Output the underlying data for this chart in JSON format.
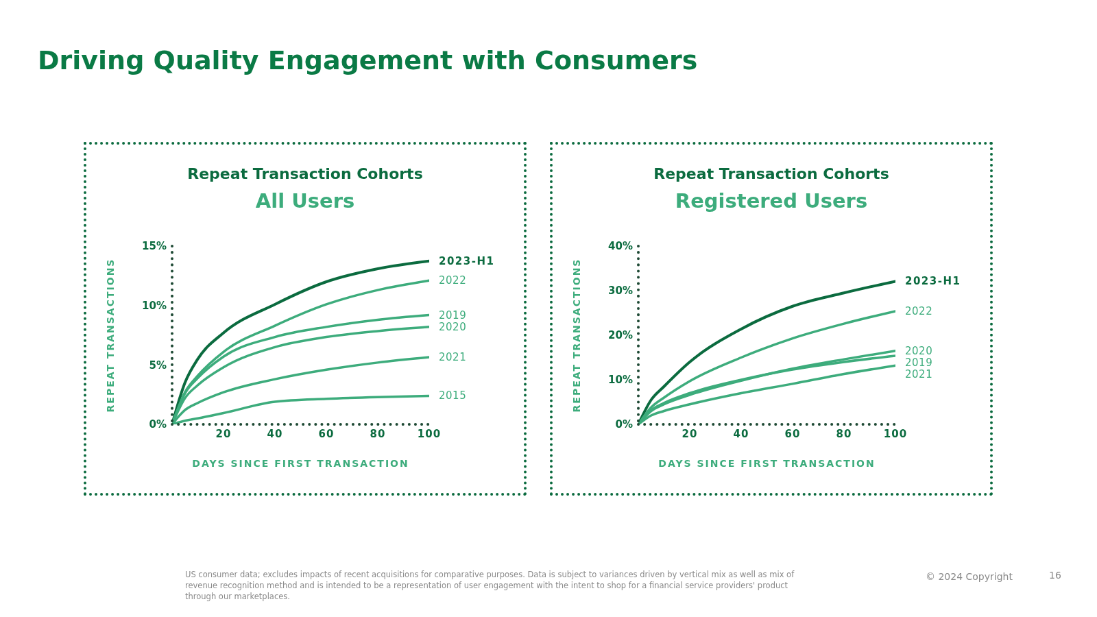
{
  "chart_data": [
    {
      "type": "line",
      "title": "Repeat Transaction Cohorts",
      "subtitle": "All Users",
      "xlabel": "DAYS SINCE FIRST TRANSACTION",
      "ylabel": "REPEAT TRANSACTIONS",
      "annotations": [
        "Driving Quality Engagement with Consumers"
      ],
      "x": [
        0,
        5,
        10,
        20,
        40,
        60,
        80,
        100
      ],
      "xlim": [
        0,
        100
      ],
      "xticks": [
        20,
        40,
        60,
        80,
        100
      ],
      "ylim": [
        0,
        15
      ],
      "yticks": [
        {
          "value": 0,
          "label": "0%"
        },
        {
          "value": 5,
          "label": "5%"
        },
        {
          "value": 10,
          "label": "10%"
        },
        {
          "value": 15,
          "label": "15%"
        }
      ],
      "marker": "none",
      "line_style": "solid",
      "series": [
        {
          "name": "2023-H1",
          "color": "#0b6b3f",
          "values": [
            0,
            3.5,
            5.5,
            7.7,
            10.1,
            12,
            13.1,
            13.75
          ]
        },
        {
          "name": "2022",
          "color": "#3dac7c",
          "values": [
            0,
            2.7,
            4.1,
            6.1,
            8.3,
            10.1,
            11.3,
            12.1
          ]
        },
        {
          "name": "2019",
          "color": "#3dac7c",
          "values": [
            0,
            2.6,
            3.9,
            5.7,
            7.35,
            8.2,
            8.8,
            9.2
          ]
        },
        {
          "name": "2020",
          "color": "#3dac7c",
          "values": [
            0,
            2.2,
            3.3,
            4.8,
            6.5,
            7.35,
            7.85,
            8.2
          ]
        },
        {
          "name": "2021",
          "color": "#3dac7c",
          "values": [
            0,
            1.2,
            1.8,
            2.7,
            3.8,
            4.6,
            5.2,
            5.65
          ]
        },
        {
          "name": "2015",
          "color": "#3dac7c",
          "values": [
            0,
            0.3,
            0.5,
            0.95,
            1.9,
            2.15,
            2.3,
            2.4
          ]
        }
      ]
    },
    {
      "type": "line",
      "title": "Repeat Transaction Cohorts",
      "subtitle": "Registered Users",
      "xlabel": "DAYS SINCE FIRST TRANSACTION",
      "ylabel": "REPEAT TRANSACTIONS",
      "annotations": [
        "US consumer data; excludes impacts of recent acquisitions for comparative purposes. Data is subject to variances driven by vertical mix as well as mix of revenue recognition method and is intended to be a representation of user engagement with the intent to shop for a financial service providers' product through our marketplaces.",
        "© 2024 Copyright",
        "16"
      ],
      "x": [
        0,
        5,
        10,
        20,
        40,
        60,
        80,
        100
      ],
      "xlim": [
        0,
        100
      ],
      "xticks": [
        20,
        40,
        60,
        80,
        100
      ],
      "ylim": [
        0,
        40
      ],
      "yticks": [
        {
          "value": 0,
          "label": "0%"
        },
        {
          "value": 10,
          "label": "10%"
        },
        {
          "value": 20,
          "label": "20%"
        },
        {
          "value": 30,
          "label": "30%"
        },
        {
          "value": 40,
          "label": "40%"
        }
      ],
      "marker": "none",
      "line_style": "solid",
      "series": [
        {
          "name": "2023-H1",
          "color": "#0b6b3f",
          "values": [
            0,
            5.5,
            8.5,
            14,
            21.4,
            26.5,
            29.5,
            32.1
          ]
        },
        {
          "name": "2022",
          "color": "#3dac7c",
          "values": [
            0,
            3.8,
            6,
            9.7,
            15,
            19.3,
            22.6,
            25.4
          ]
        },
        {
          "name": "2020",
          "color": "#3dac7c",
          "values": [
            0,
            3,
            4.5,
            6.6,
            9.8,
            12.5,
            14.6,
            16.5
          ]
        },
        {
          "name": "2019",
          "color": "#3dac7c",
          "values": [
            0,
            3.2,
            4.8,
            7,
            10,
            12.3,
            14,
            15.4
          ]
        },
        {
          "name": "2021",
          "color": "#3dac7c",
          "values": [
            0,
            2,
            3,
            4.5,
            7,
            9.1,
            11.3,
            13.2
          ]
        }
      ]
    }
  ]
}
